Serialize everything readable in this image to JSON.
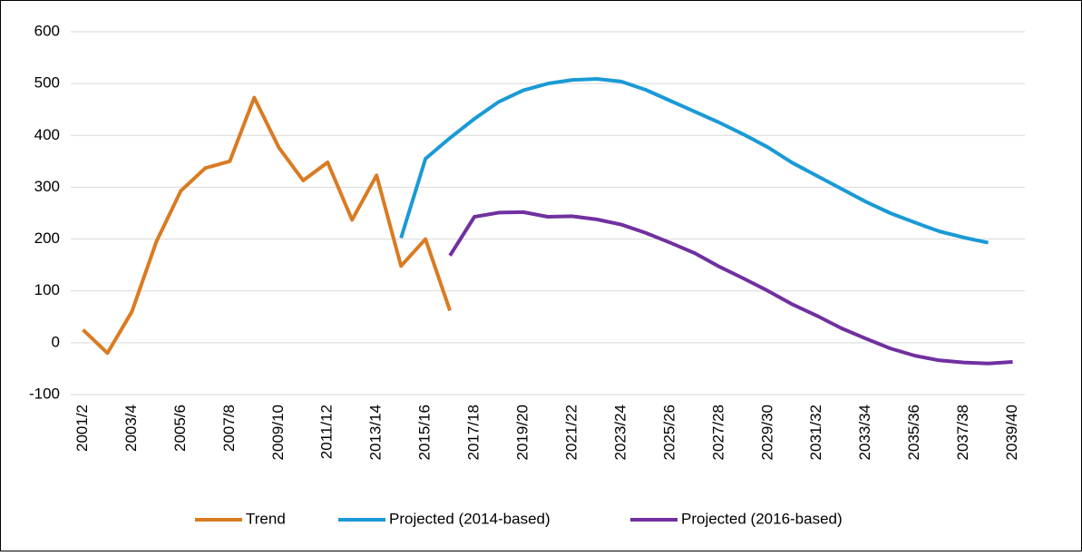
{
  "chart_data": {
    "type": "line",
    "categories": [
      "2001/2",
      null,
      "2003/4",
      null,
      "2005/6",
      null,
      "2007/8",
      null,
      "2009/10",
      null,
      "2011/12",
      null,
      "2013/14",
      null,
      "2015/16",
      null,
      "2017/18",
      null,
      "2019/20",
      null,
      "2021/22",
      null,
      "2023/24",
      null,
      "2025/26",
      null,
      "2027/28",
      null,
      "2029/30",
      null,
      "2031/32",
      null,
      "2033/34",
      null,
      "2035/36",
      null,
      "2037/38",
      null,
      "2039/40"
    ],
    "series": [
      {
        "name": "Trend",
        "color": "#d97b22",
        "values": [
          25,
          -20,
          60,
          195,
          293,
          337,
          350,
          473,
          377,
          313,
          348,
          237,
          323,
          148,
          200,
          62,
          null,
          null,
          null,
          null,
          null,
          null,
          null,
          null,
          null,
          null,
          null,
          null,
          null,
          null,
          null,
          null,
          null,
          null,
          null,
          null,
          null,
          null,
          null
        ]
      },
      {
        "name": "Projected (2014-based)",
        "color": "#1a9ad6",
        "values": [
          null,
          null,
          null,
          null,
          null,
          null,
          null,
          null,
          null,
          null,
          null,
          null,
          null,
          202,
          355,
          395,
          432,
          465,
          487,
          500,
          507,
          509,
          504,
          488,
          467,
          446,
          425,
          402,
          377,
          347,
          322,
          297,
          272,
          250,
          232,
          215,
          203,
          193,
          null
        ]
      },
      {
        "name": "Projected (2016-based)",
        "color": "#7030a0",
        "values": [
          null,
          null,
          null,
          null,
          null,
          null,
          null,
          null,
          null,
          null,
          null,
          null,
          null,
          null,
          null,
          168,
          243,
          251,
          252,
          243,
          244,
          238,
          228,
          212,
          193,
          173,
          147,
          124,
          100,
          74,
          52,
          28,
          8,
          -11,
          -25,
          -34,
          -38,
          -40,
          -37
        ]
      }
    ],
    "ylim": [
      -100,
      600
    ],
    "yticks": [
      -100,
      0,
      100,
      200,
      300,
      400,
      500,
      600
    ],
    "grid": true,
    "legend": "bottom"
  }
}
